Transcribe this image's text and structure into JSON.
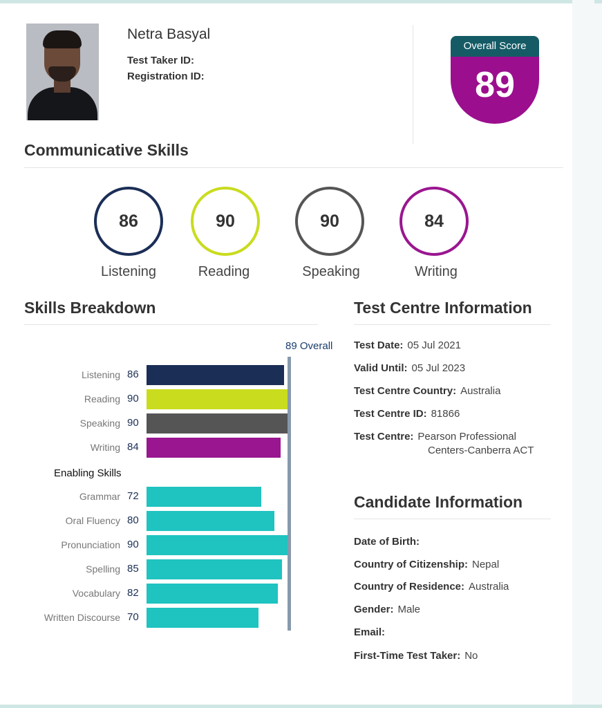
{
  "candidate": {
    "name": "Netra Basyal",
    "test_taker_id_label": "Test Taker ID:",
    "registration_id_label": "Registration ID:"
  },
  "overall": {
    "label": "Overall Score",
    "score": "89"
  },
  "communicative": {
    "title": "Communicative Skills",
    "skills": [
      {
        "name": "Listening",
        "score": "86",
        "color": "#1b2e56"
      },
      {
        "name": "Reading",
        "score": "90",
        "color": "#c9dc1e"
      },
      {
        "name": "Speaking",
        "score": "90",
        "color": "#555555"
      },
      {
        "name": "Writing",
        "score": "84",
        "color": "#9a1690"
      }
    ]
  },
  "breakdown": {
    "title": "Skills Breakdown",
    "overall_label": "89 Overall",
    "enabling_label": "Enabling Skills"
  },
  "chart_data": {
    "type": "bar",
    "orientation": "horizontal",
    "xlim": [
      0,
      90
    ],
    "overall_marker": 89,
    "communicative": [
      {
        "name": "Listening",
        "value": 86,
        "color": "#1b2e56"
      },
      {
        "name": "Reading",
        "value": 90,
        "color": "#c9dc1e"
      },
      {
        "name": "Speaking",
        "value": 90,
        "color": "#555555"
      },
      {
        "name": "Writing",
        "value": 84,
        "color": "#9a1690"
      }
    ],
    "enabling": [
      {
        "name": "Grammar",
        "value": 72,
        "color": "#1fc3c0"
      },
      {
        "name": "Oral Fluency",
        "value": 80,
        "color": "#1fc3c0"
      },
      {
        "name": "Pronunciation",
        "value": 90,
        "color": "#1fc3c0"
      },
      {
        "name": "Spelling",
        "value": 85,
        "color": "#1fc3c0"
      },
      {
        "name": "Vocabulary",
        "value": 82,
        "color": "#1fc3c0"
      },
      {
        "name": "Written Discourse",
        "value": 70,
        "color": "#1fc3c0"
      }
    ]
  },
  "test_centre": {
    "title": "Test Centre Information",
    "test_date_label": "Test Date:",
    "test_date": "05 Jul 2021",
    "valid_until_label": "Valid Until:",
    "valid_until": "05 Jul 2023",
    "country_label": "Test Centre Country:",
    "country": "Australia",
    "centre_id_label": "Test Centre ID:",
    "centre_id": "81866",
    "centre_label": "Test Centre:",
    "centre_line1": "Pearson Professional",
    "centre_line2": "Centers-Canberra ACT"
  },
  "candidate_info": {
    "title": "Candidate Information",
    "dob_label": "Date of Birth:",
    "citizenship_label": "Country of Citizenship:",
    "citizenship": "Nepal",
    "residence_label": "Country of Residence:",
    "residence": "Australia",
    "gender_label": "Gender:",
    "gender": "Male",
    "email_label": "Email:",
    "first_time_label": "First-Time Test Taker:",
    "first_time": "No"
  }
}
